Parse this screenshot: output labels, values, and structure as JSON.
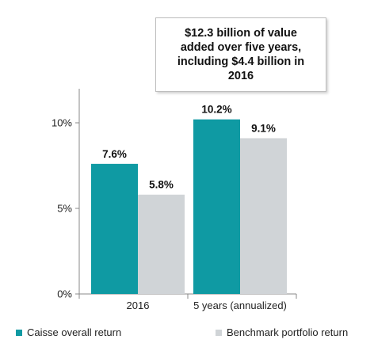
{
  "callout_text": "$12.3 billion of value added over five years, including $4.4 billion in 2016",
  "colors": {
    "caisse": "#0f9aa3",
    "benchmark": "#d0d4d7"
  },
  "chart_data": {
    "type": "bar",
    "categories": [
      "2016",
      "5 years (annualized)"
    ],
    "series": [
      {
        "name": "Caisse overall return",
        "values": [
          7.6,
          10.2
        ],
        "labels": [
          "7.6%",
          "10.2%"
        ]
      },
      {
        "name": "Benchmark portfolio return",
        "values": [
          5.8,
          9.1
        ],
        "labels": [
          "5.8%",
          "9.1%"
        ]
      }
    ],
    "yticks": [
      0,
      5,
      10
    ],
    "ytick_labels": [
      "0%",
      "5%",
      "10%"
    ],
    "ylim": [
      0,
      12
    ],
    "grid": false,
    "legend_position": "bottom"
  }
}
